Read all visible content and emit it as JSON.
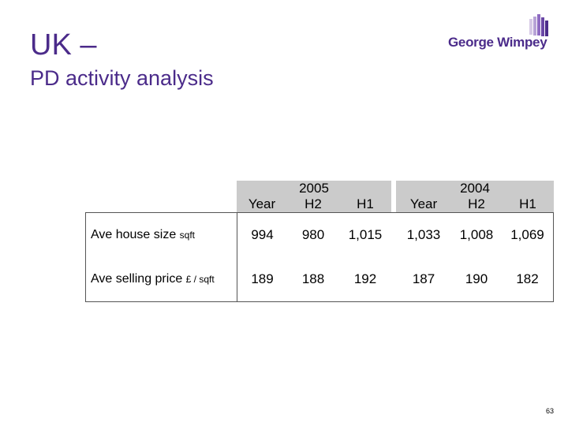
{
  "slide": {
    "title_line1": "UK –",
    "title_line2": "PD activity analysis",
    "page_number": "63",
    "title_color": "#4b2b8a"
  },
  "logo": {
    "text": "George Wimpey"
  },
  "table": {
    "year_groups": [
      "2005",
      "2004"
    ],
    "sub_headers": [
      "Year",
      "H2",
      "H1",
      "Year",
      "H2",
      "H1"
    ],
    "rows": [
      {
        "label_main": "Ave house size",
        "label_unit": "sqft",
        "values": [
          "994",
          "980",
          "1,015",
          "1,033",
          "1,008",
          "1,069"
        ]
      },
      {
        "label_main": "Ave selling price",
        "label_unit": "£ / sqft",
        "values": [
          "189",
          "188",
          "192",
          "187",
          "190",
          "182"
        ]
      }
    ]
  }
}
